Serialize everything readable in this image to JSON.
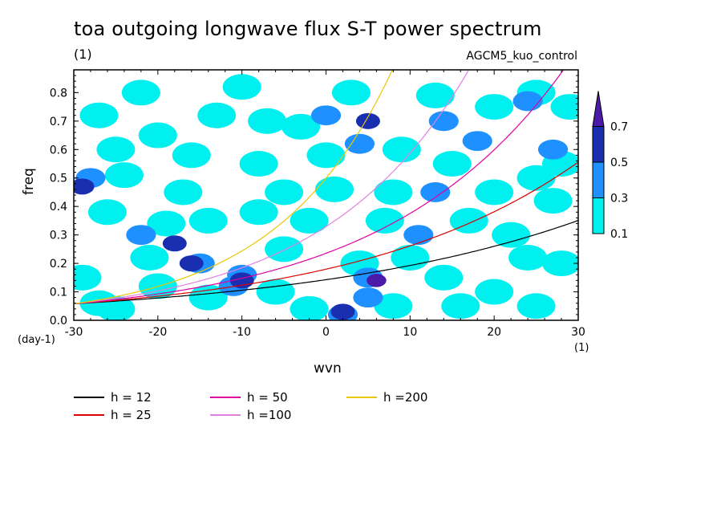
{
  "title": "toa outgoing longwave flux S-T power spectrum",
  "units_top": "(1)",
  "model": "AGCM5_kuo_control",
  "ylabel": "freq",
  "xlabel": "wvn",
  "yunits": "(day-1)",
  "xunits": "(1)",
  "chart_data": {
    "type": "heatmap",
    "title": "toa outgoing longwave flux S-T power spectrum",
    "xlabel": "wvn",
    "ylabel": "freq",
    "xlim": [
      -30,
      30
    ],
    "ylim": [
      0,
      0.88
    ],
    "x_ticks": [
      "-30",
      "-20",
      "-10",
      "0",
      "10",
      "20",
      "30"
    ],
    "y_ticks": [
      "0.0",
      "0.1",
      "0.2",
      "0.3",
      "0.4",
      "0.5",
      "0.6",
      "0.7",
      "0.8"
    ],
    "colorbar": {
      "levels": [
        "0.1",
        "0.3",
        "0.5",
        "0.7"
      ],
      "colors": [
        "#00f0f0",
        "#1e90ff",
        "#1a2fb0",
        "#4b1aa8"
      ]
    },
    "contour_cells": [
      {
        "x": -27,
        "y": 0.06,
        "level": 1
      },
      {
        "x": -25,
        "y": 0.04,
        "level": 1
      },
      {
        "x": -29,
        "y": 0.15,
        "level": 1
      },
      {
        "x": -21,
        "y": 0.22,
        "level": 1
      },
      {
        "x": -22,
        "y": 0.3,
        "level": 2
      },
      {
        "x": -18,
        "y": 0.27,
        "level": 3
      },
      {
        "x": -19,
        "y": 0.34,
        "level": 1
      },
      {
        "x": -26,
        "y": 0.38,
        "level": 1
      },
      {
        "x": -28,
        "y": 0.5,
        "level": 2
      },
      {
        "x": -24,
        "y": 0.51,
        "level": 1
      },
      {
        "x": -29,
        "y": 0.47,
        "level": 3
      },
      {
        "x": -25,
        "y": 0.6,
        "level": 1
      },
      {
        "x": -20,
        "y": 0.65,
        "level": 1
      },
      {
        "x": -27,
        "y": 0.72,
        "level": 1
      },
      {
        "x": -22,
        "y": 0.8,
        "level": 1
      },
      {
        "x": -16,
        "y": 0.58,
        "level": 1
      },
      {
        "x": -13,
        "y": 0.72,
        "level": 1
      },
      {
        "x": -10,
        "y": 0.82,
        "level": 1
      },
      {
        "x": -15,
        "y": 0.2,
        "level": 2
      },
      {
        "x": -16,
        "y": 0.2,
        "level": 3
      },
      {
        "x": -10,
        "y": 0.16,
        "level": 2
      },
      {
        "x": -10,
        "y": 0.14,
        "level": 3
      },
      {
        "x": -11,
        "y": 0.12,
        "level": 2
      },
      {
        "x": -14,
        "y": 0.08,
        "level": 1
      },
      {
        "x": -6,
        "y": 0.1,
        "level": 1
      },
      {
        "x": -2,
        "y": 0.04,
        "level": 1
      },
      {
        "x": 2,
        "y": 0.03,
        "level": 3
      },
      {
        "x": 2,
        "y": 0.02,
        "level": 2
      },
      {
        "x": 5,
        "y": 0.15,
        "level": 2
      },
      {
        "x": 6,
        "y": 0.14,
        "level": 4
      },
      {
        "x": 5,
        "y": 0.08,
        "level": 2
      },
      {
        "x": 4,
        "y": 0.2,
        "level": 1
      },
      {
        "x": -5,
        "y": 0.45,
        "level": 1
      },
      {
        "x": -8,
        "y": 0.55,
        "level": 1
      },
      {
        "x": -3,
        "y": 0.68,
        "level": 1
      },
      {
        "x": 0,
        "y": 0.58,
        "level": 1
      },
      {
        "x": 4,
        "y": 0.62,
        "level": 2
      },
      {
        "x": 5,
        "y": 0.7,
        "level": 3
      },
      {
        "x": 0,
        "y": 0.72,
        "level": 2
      },
      {
        "x": 3,
        "y": 0.8,
        "level": 1
      },
      {
        "x": 8,
        "y": 0.45,
        "level": 1
      },
      {
        "x": 11,
        "y": 0.3,
        "level": 2
      },
      {
        "x": 10,
        "y": 0.22,
        "level": 1
      },
      {
        "x": 13,
        "y": 0.45,
        "level": 2
      },
      {
        "x": 15,
        "y": 0.55,
        "level": 1
      },
      {
        "x": 18,
        "y": 0.63,
        "level": 2
      },
      {
        "x": 14,
        "y": 0.7,
        "level": 2
      },
      {
        "x": 13,
        "y": 0.79,
        "level": 1
      },
      {
        "x": 14,
        "y": 0.15,
        "level": 1
      },
      {
        "x": 20,
        "y": 0.1,
        "level": 1
      },
      {
        "x": 22,
        "y": 0.3,
        "level": 1
      },
      {
        "x": 24,
        "y": 0.22,
        "level": 1
      },
      {
        "x": 27,
        "y": 0.42,
        "level": 1
      },
      {
        "x": 25,
        "y": 0.5,
        "level": 1
      },
      {
        "x": 27,
        "y": 0.6,
        "level": 2
      },
      {
        "x": 28,
        "y": 0.55,
        "level": 1
      },
      {
        "x": 24,
        "y": 0.77,
        "level": 2
      },
      {
        "x": 25,
        "y": 0.8,
        "level": 1
      },
      {
        "x": 17,
        "y": 0.35,
        "level": 1
      },
      {
        "x": 20,
        "y": 0.45,
        "level": 1
      },
      {
        "x": -5,
        "y": 0.25,
        "level": 1
      },
      {
        "x": -2,
        "y": 0.35,
        "level": 1
      },
      {
        "x": -8,
        "y": 0.38,
        "level": 1
      },
      {
        "x": 7,
        "y": 0.35,
        "level": 1
      },
      {
        "x": 1,
        "y": 0.46,
        "level": 1
      },
      {
        "x": -17,
        "y": 0.45,
        "level": 1
      },
      {
        "x": -14,
        "y": 0.35,
        "level": 1
      },
      {
        "x": -7,
        "y": 0.7,
        "level": 1
      },
      {
        "x": 9,
        "y": 0.6,
        "level": 1
      },
      {
        "x": 20,
        "y": 0.75,
        "level": 1
      },
      {
        "x": 29,
        "y": 0.75,
        "level": 1
      },
      {
        "x": 28,
        "y": 0.2,
        "level": 1
      },
      {
        "x": 16,
        "y": 0.05,
        "level": 1
      },
      {
        "x": 25,
        "y": 0.05,
        "level": 1
      },
      {
        "x": 8,
        "y": 0.05,
        "level": 1
      },
      {
        "x": -20,
        "y": 0.12,
        "level": 1
      }
    ],
    "series": [
      {
        "name": "h = 12",
        "color": "#000000",
        "h": 12
      },
      {
        "name": "h = 25",
        "color": "#dc0000",
        "h": 25
      },
      {
        "name": "h = 50",
        "color": "#e000a0",
        "h": 50
      },
      {
        "name": "h =100",
        "color": "#e080e0",
        "h": 100
      },
      {
        "name": "h =200",
        "color": "#e8c800",
        "h": 200
      }
    ]
  }
}
